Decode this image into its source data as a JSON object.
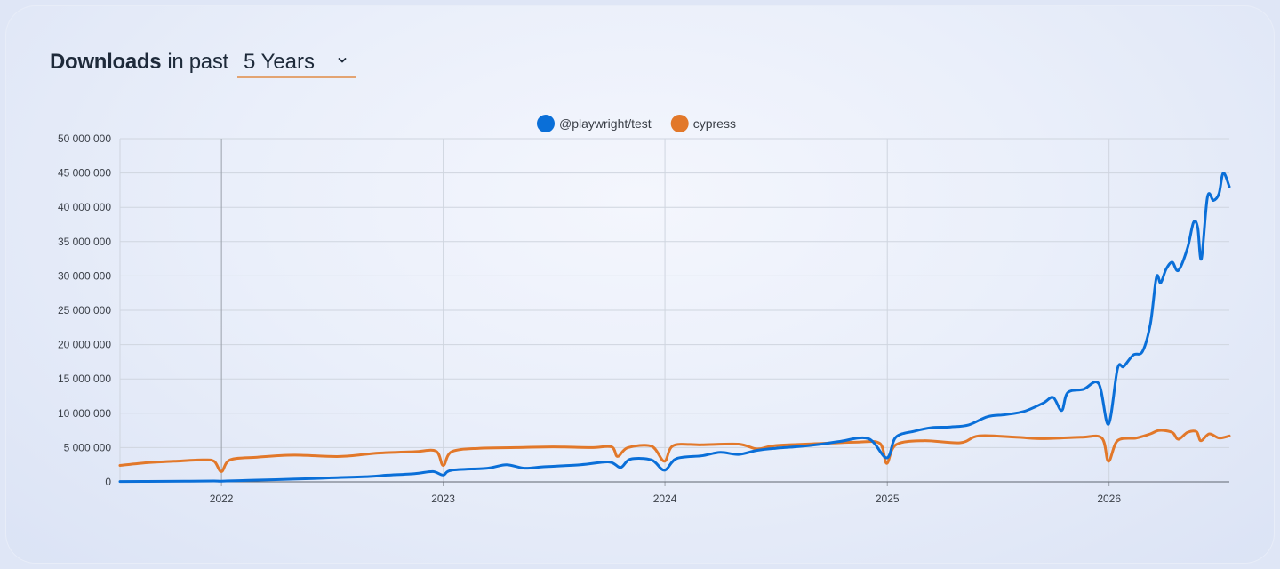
{
  "header": {
    "title_strong": "Downloads",
    "title_rest": "in past",
    "period": "5 Years",
    "period_icon": "chevron-down-icon"
  },
  "chart_data": {
    "type": "line",
    "grid": true,
    "legend_position": "top",
    "ylim": [
      0,
      50000000
    ],
    "y_ticks": [
      "0",
      "5 000 000",
      "10 000 000",
      "15 000 000",
      "20 000 000",
      "25 000 000",
      "30 000 000",
      "35 000 000",
      "40 000 000",
      "45 000 000",
      "50 000 000"
    ],
    "x_ticks": [
      "2022",
      "2023",
      "2024",
      "2025",
      "2026"
    ],
    "xlim": [
      "2021-07-18",
      "2026-07-18"
    ],
    "series": [
      {
        "name": "@playwright/test",
        "color": "#0a6fd8",
        "points": [
          [
            "2021-07-18",
            50000
          ],
          [
            "2021-09-01",
            60000
          ],
          [
            "2021-11-01",
            90000
          ],
          [
            "2021-12-20",
            130000
          ],
          [
            "2022-01-01",
            100000
          ],
          [
            "2022-02-15",
            220000
          ],
          [
            "2022-04-01",
            330000
          ],
          [
            "2022-06-01",
            480000
          ],
          [
            "2022-07-01",
            600000
          ],
          [
            "2022-09-01",
            780000
          ],
          [
            "2022-10-01",
            980000
          ],
          [
            "2022-11-15",
            1200000
          ],
          [
            "2022-12-15",
            1500000
          ],
          [
            "2023-01-01",
            1000000
          ],
          [
            "2023-01-15",
            1700000
          ],
          [
            "2023-03-15",
            2000000
          ],
          [
            "2023-04-15",
            2500000
          ],
          [
            "2023-05-15",
            2000000
          ],
          [
            "2023-06-15",
            2200000
          ],
          [
            "2023-08-15",
            2500000
          ],
          [
            "2023-10-01",
            2900000
          ],
          [
            "2023-10-20",
            2100000
          ],
          [
            "2023-11-05",
            3300000
          ],
          [
            "2023-12-10",
            3200000
          ],
          [
            "2023-12-31",
            1700000
          ],
          [
            "2024-01-20",
            3400000
          ],
          [
            "2024-03-01",
            3800000
          ],
          [
            "2024-04-01",
            4300000
          ],
          [
            "2024-05-01",
            4000000
          ],
          [
            "2024-06-01",
            4600000
          ],
          [
            "2024-07-01",
            4900000
          ],
          [
            "2024-08-01",
            5100000
          ],
          [
            "2024-09-15",
            5500000
          ],
          [
            "2024-10-15",
            5900000
          ],
          [
            "2024-12-01",
            6300000
          ],
          [
            "2024-12-31",
            3500000
          ],
          [
            "2025-01-15",
            6500000
          ],
          [
            "2025-02-15",
            7400000
          ],
          [
            "2025-03-15",
            7900000
          ],
          [
            "2025-04-15",
            8000000
          ],
          [
            "2025-05-15",
            8300000
          ],
          [
            "2025-06-15",
            9500000
          ],
          [
            "2025-07-15",
            9800000
          ],
          [
            "2025-08-15",
            10300000
          ],
          [
            "2025-09-15",
            11500000
          ],
          [
            "2025-10-01",
            12300000
          ],
          [
            "2025-10-15",
            10400000
          ],
          [
            "2025-10-25",
            13000000
          ],
          [
            "2025-11-20",
            13500000
          ],
          [
            "2025-12-15",
            14300000
          ],
          [
            "2025-12-31",
            8400000
          ],
          [
            "2026-01-15",
            16500000
          ],
          [
            "2026-01-25",
            16800000
          ],
          [
            "2026-02-10",
            18500000
          ],
          [
            "2026-02-25",
            19000000
          ],
          [
            "2026-03-10",
            23000000
          ],
          [
            "2026-03-20",
            29800000
          ],
          [
            "2026-03-27",
            29000000
          ],
          [
            "2026-04-05",
            31000000
          ],
          [
            "2026-04-15",
            32000000
          ],
          [
            "2026-04-25",
            30800000
          ],
          [
            "2026-05-10",
            34000000
          ],
          [
            "2026-05-20",
            37800000
          ],
          [
            "2026-05-27",
            37000000
          ],
          [
            "2026-06-02",
            32500000
          ],
          [
            "2026-06-12",
            41500000
          ],
          [
            "2026-06-22",
            41000000
          ],
          [
            "2026-07-01",
            42000000
          ],
          [
            "2026-07-08",
            45000000
          ],
          [
            "2026-07-18",
            43000000
          ]
        ]
      },
      {
        "name": "cypress",
        "color": "#e2782a",
        "points": [
          [
            "2021-07-18",
            2400000
          ],
          [
            "2021-09-01",
            2800000
          ],
          [
            "2021-10-15",
            3000000
          ],
          [
            "2021-12-01",
            3200000
          ],
          [
            "2021-12-20",
            3000000
          ],
          [
            "2022-01-01",
            1500000
          ],
          [
            "2022-01-15",
            3200000
          ],
          [
            "2022-03-01",
            3600000
          ],
          [
            "2022-05-01",
            3900000
          ],
          [
            "2022-07-15",
            3700000
          ],
          [
            "2022-09-15",
            4200000
          ],
          [
            "2022-11-15",
            4400000
          ],
          [
            "2022-12-20",
            4500000
          ],
          [
            "2023-01-01",
            2400000
          ],
          [
            "2023-01-15",
            4400000
          ],
          [
            "2023-03-01",
            4900000
          ],
          [
            "2023-05-01",
            5000000
          ],
          [
            "2023-07-01",
            5100000
          ],
          [
            "2023-09-01",
            5000000
          ],
          [
            "2023-10-05",
            5100000
          ],
          [
            "2023-10-15",
            3700000
          ],
          [
            "2023-11-01",
            5000000
          ],
          [
            "2023-12-10",
            5200000
          ],
          [
            "2023-12-31",
            3000000
          ],
          [
            "2024-01-15",
            5300000
          ],
          [
            "2024-03-01",
            5400000
          ],
          [
            "2024-05-01",
            5500000
          ],
          [
            "2024-06-01",
            4800000
          ],
          [
            "2024-07-01",
            5300000
          ],
          [
            "2024-09-15",
            5600000
          ],
          [
            "2024-11-15",
            5800000
          ],
          [
            "2024-12-20",
            5600000
          ],
          [
            "2024-12-31",
            2700000
          ],
          [
            "2025-01-15",
            5400000
          ],
          [
            "2025-03-01",
            6000000
          ],
          [
            "2025-05-01",
            5700000
          ],
          [
            "2025-06-01",
            6700000
          ],
          [
            "2025-08-01",
            6500000
          ],
          [
            "2025-09-15",
            6300000
          ],
          [
            "2025-11-15",
            6500000
          ],
          [
            "2025-12-20",
            6400000
          ],
          [
            "2025-12-31",
            3000000
          ],
          [
            "2026-01-15",
            6000000
          ],
          [
            "2026-02-15",
            6400000
          ],
          [
            "2026-03-10",
            7000000
          ],
          [
            "2026-03-25",
            7500000
          ],
          [
            "2026-04-15",
            7200000
          ],
          [
            "2026-04-25",
            6200000
          ],
          [
            "2026-05-10",
            7200000
          ],
          [
            "2026-05-25",
            7300000
          ],
          [
            "2026-06-01",
            6000000
          ],
          [
            "2026-06-15",
            7000000
          ],
          [
            "2026-07-01",
            6400000
          ],
          [
            "2026-07-18",
            6700000
          ]
        ]
      }
    ]
  }
}
